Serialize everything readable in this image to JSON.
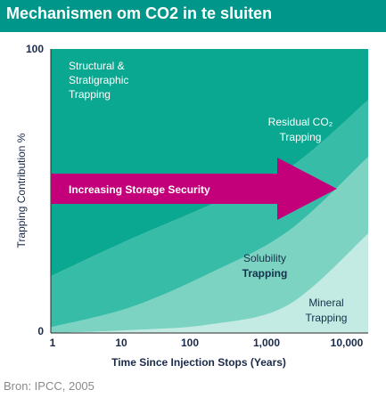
{
  "header": {
    "title": "Mechanismen om CO2 in te sluiten"
  },
  "footer": {
    "source": "Bron: IPCC, 2005"
  },
  "colors": {
    "title_bar": "#00968a",
    "structural": "#0aa890",
    "residual": "#37bca7",
    "solubility": "#7dd3c2",
    "mineral": "#c4ebe3",
    "arrow": "#c3007a",
    "axis_text": "#1a2a4a"
  },
  "chart_data": {
    "type": "area",
    "title": "",
    "xlabel": "Time Since Injection Stops (Years)",
    "ylabel": "Trapping Contribution %",
    "x_scale": "log",
    "xlim": [
      1,
      10000
    ],
    "ylim": [
      0,
      100
    ],
    "x_ticks": [
      "1",
      "10",
      "100",
      "1,000",
      "10,000"
    ],
    "y_ticks": [
      "0",
      "100"
    ],
    "grid": false,
    "stacking_order_bottom_to_top": [
      "Mineral Trapping",
      "Solubility Trapping",
      "Residual CO₂ Trapping",
      "Structural & Stratigraphic Trapping"
    ],
    "x": [
      1,
      10,
      100,
      1000,
      10000
    ],
    "series": [
      {
        "name": "Mineral Trapping",
        "values": [
          0,
          1,
          3,
          10,
          35
        ]
      },
      {
        "name": "Solubility Trapping",
        "values": [
          2,
          8,
          18,
          26,
          27
        ]
      },
      {
        "name": "Residual CO₂ Trapping",
        "values": [
          18,
          24,
          24,
          22,
          20
        ]
      },
      {
        "name": "Structural & Stratigraphic Trapping",
        "values": [
          80,
          67,
          55,
          42,
          18
        ]
      }
    ],
    "labels": {
      "structural": [
        "Structural &",
        "Stratigraphic",
        "Trapping"
      ],
      "residual": [
        "Residual CO₂",
        "Trapping"
      ],
      "solubility": [
        "Solubility",
        "Trapping"
      ],
      "mineral": [
        "Mineral",
        "Trapping"
      ]
    },
    "annotations": {
      "arrow_label": "Increasing Storage Security"
    }
  }
}
